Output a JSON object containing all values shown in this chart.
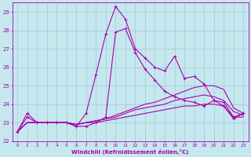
{
  "xlabel": "Windchill (Refroidissement éolien,°C)",
  "xlim": [
    -0.5,
    23.5
  ],
  "ylim": [
    22,
    29.5
  ],
  "xticks": [
    0,
    1,
    2,
    3,
    4,
    5,
    6,
    7,
    8,
    9,
    10,
    11,
    12,
    13,
    14,
    15,
    16,
    17,
    18,
    19,
    20,
    21,
    22,
    23
  ],
  "yticks": [
    22,
    23,
    24,
    25,
    26,
    27,
    28,
    29
  ],
  "bg_color": "#c5e8ef",
  "line_color": "#aa00aa",
  "grid_color": "#aaccd8",
  "series": [
    {
      "x": [
        0,
        1,
        2,
        3,
        4,
        5,
        6,
        7,
        8,
        9,
        10,
        11,
        12,
        13,
        14,
        15,
        16,
        17,
        18,
        19,
        20,
        21,
        22,
        23
      ],
      "y": [
        22.5,
        23.5,
        23.0,
        23.0,
        23.0,
        23.0,
        22.8,
        23.5,
        25.6,
        27.8,
        29.3,
        28.6,
        27.0,
        26.5,
        26.0,
        25.8,
        26.6,
        25.4,
        25.5,
        25.1,
        24.2,
        24.1,
        23.3,
        23.5
      ],
      "marker": true,
      "lw": 0.8
    },
    {
      "x": [
        0,
        1,
        2,
        3,
        4,
        5,
        6,
        7,
        8,
        9,
        10,
        11,
        12,
        13,
        14,
        15,
        16,
        17,
        18,
        19,
        20,
        21,
        22,
        23
      ],
      "y": [
        22.5,
        23.3,
        23.0,
        23.0,
        23.0,
        23.0,
        22.8,
        22.8,
        23.0,
        23.3,
        27.9,
        28.1,
        26.8,
        25.9,
        25.3,
        24.7,
        24.4,
        24.2,
        24.1,
        23.9,
        24.2,
        23.9,
        23.2,
        23.5
      ],
      "marker": true,
      "lw": 0.8
    },
    {
      "x": [
        0,
        1,
        2,
        3,
        4,
        5,
        6,
        7,
        8,
        9,
        10,
        11,
        12,
        13,
        14,
        15,
        16,
        17,
        18,
        19,
        20,
        21,
        22,
        23
      ],
      "y": [
        22.5,
        23.0,
        23.0,
        23.0,
        23.0,
        23.0,
        22.9,
        23.0,
        23.1,
        23.2,
        23.4,
        23.6,
        23.8,
        24.0,
        24.1,
        24.3,
        24.5,
        24.7,
        24.9,
        25.0,
        25.0,
        24.8,
        23.8,
        23.5
      ],
      "marker": false,
      "lw": 0.8
    },
    {
      "x": [
        0,
        1,
        2,
        3,
        4,
        5,
        6,
        7,
        8,
        9,
        10,
        11,
        12,
        13,
        14,
        15,
        16,
        17,
        18,
        19,
        20,
        21,
        22,
        23
      ],
      "y": [
        22.5,
        23.0,
        23.0,
        23.0,
        23.0,
        23.0,
        22.9,
        23.0,
        23.1,
        23.2,
        23.3,
        23.5,
        23.7,
        23.8,
        23.9,
        24.0,
        24.2,
        24.3,
        24.4,
        24.5,
        24.4,
        24.2,
        23.6,
        23.4
      ],
      "marker": false,
      "lw": 0.8
    },
    {
      "x": [
        0,
        1,
        2,
        3,
        4,
        5,
        6,
        7,
        8,
        9,
        10,
        11,
        12,
        13,
        14,
        15,
        16,
        17,
        18,
        19,
        20,
        21,
        22,
        23
      ],
      "y": [
        22.5,
        23.0,
        23.0,
        23.0,
        23.0,
        23.0,
        22.9,
        23.0,
        23.0,
        23.1,
        23.2,
        23.3,
        23.4,
        23.5,
        23.6,
        23.7,
        23.8,
        23.9,
        23.9,
        24.0,
        24.0,
        23.9,
        23.3,
        23.3
      ],
      "marker": false,
      "lw": 0.8
    }
  ]
}
